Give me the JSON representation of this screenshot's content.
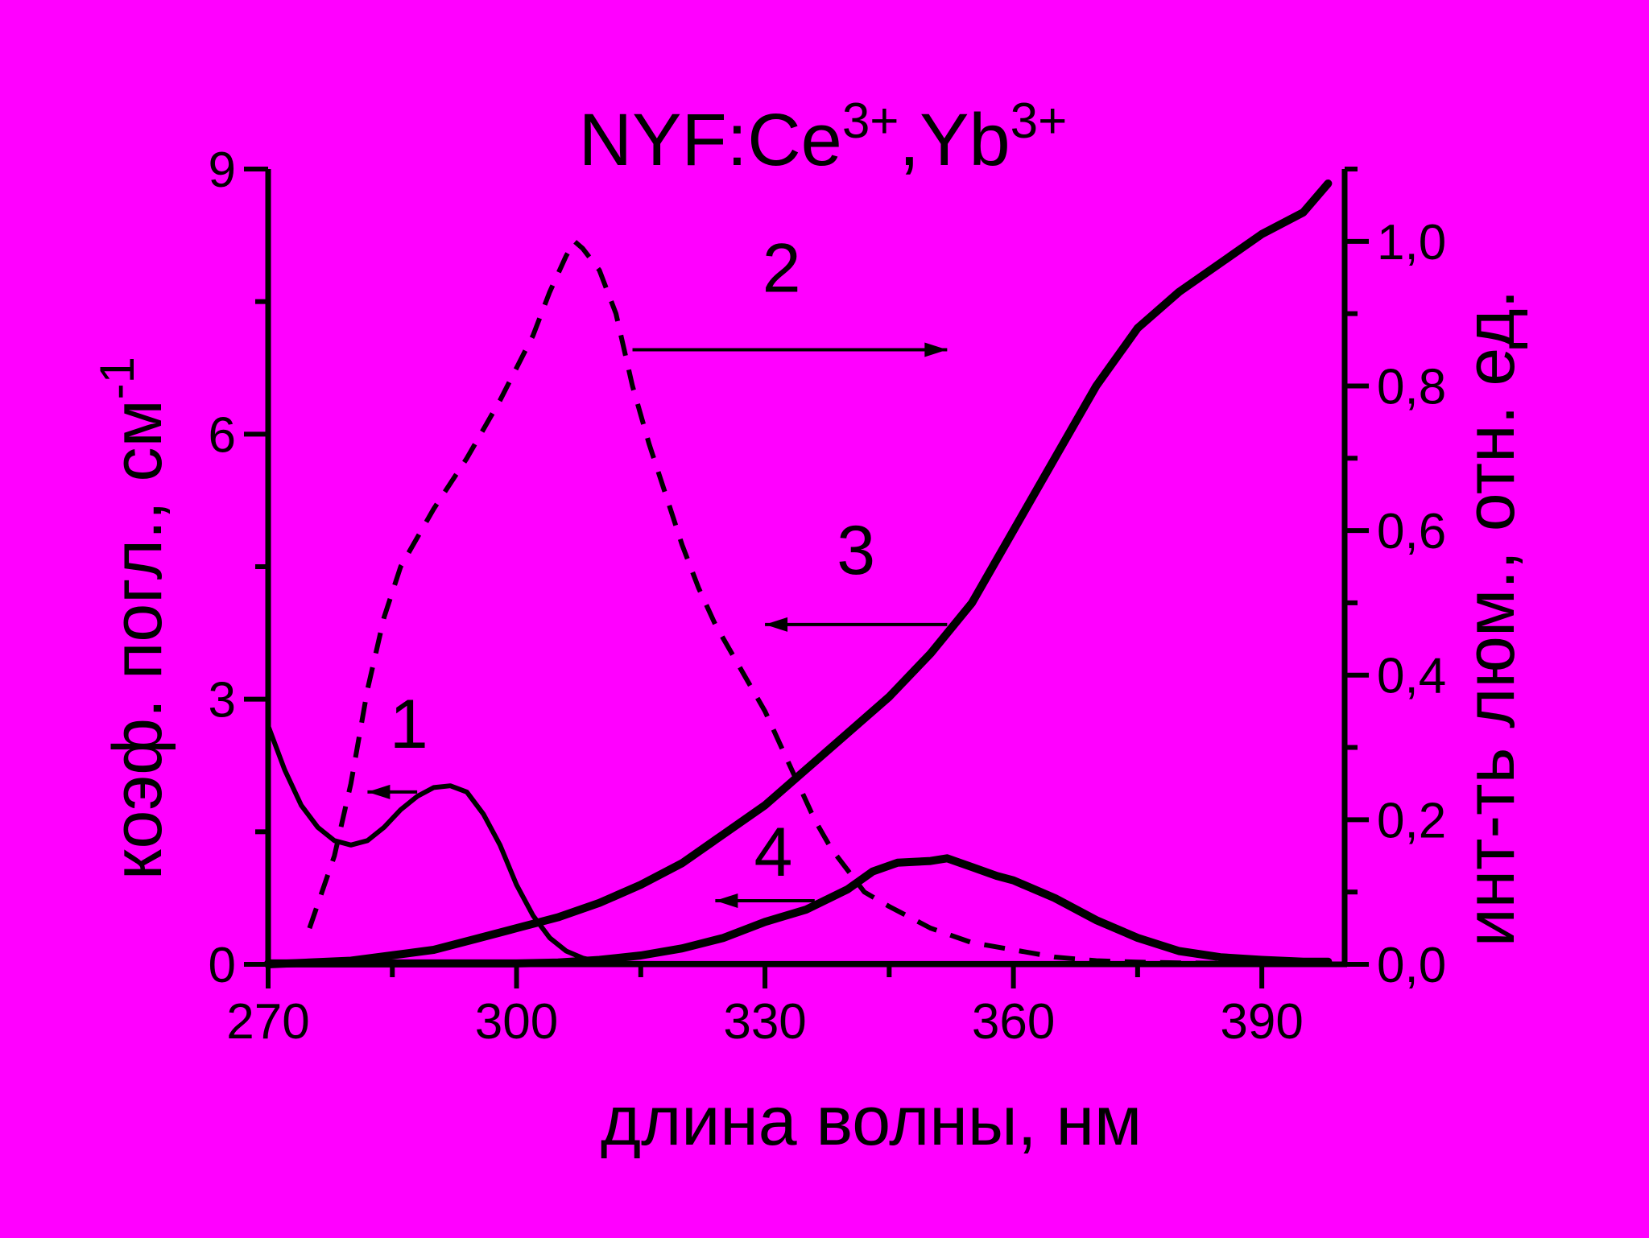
{
  "chart_data": {
    "type": "line",
    "title_main": "NYF:Ce",
    "title_sup1": "3+",
    "title_mid": ",Yb",
    "title_sup2": "3+",
    "xlabel": "длина волны, нм",
    "ylabel_left_main": "коэф. погл., см",
    "ylabel_left_sup": "-1",
    "ylabel_right": "инт-ть люм., отн. ед.",
    "xlim": [
      270,
      400
    ],
    "ylim_left": [
      0,
      9
    ],
    "ylim_right": [
      0,
      1.1
    ],
    "x_ticks": [
      270,
      300,
      330,
      360,
      390
    ],
    "x_tick_labels": [
      "270",
      "300",
      "330",
      "360",
      "390"
    ],
    "y_left_ticks": [
      0,
      3,
      6,
      9
    ],
    "y_left_tick_labels": [
      "0",
      "3",
      "6",
      "9"
    ],
    "y_right_ticks": [
      0,
      0.2,
      0.4,
      0.6,
      0.8,
      1.0
    ],
    "y_right_tick_labels": [
      "0,0",
      "0,2",
      "0,4",
      "0,6",
      "0,8",
      "1,0"
    ],
    "background": "#ff00ff",
    "line_color": "#000000",
    "series": [
      {
        "label": "1",
        "axis": "left",
        "style": "solid",
        "x": [
          270,
          272,
          274,
          276,
          278,
          280,
          282,
          284,
          286,
          288,
          290,
          292,
          294,
          296,
          298,
          300,
          302,
          304,
          306,
          308,
          310,
          312,
          314,
          316,
          318,
          320,
          325,
          330,
          335,
          340,
          345,
          350,
          355,
          360,
          365,
          370,
          380,
          390,
          398
        ],
        "y": [
          2.7,
          2.2,
          1.8,
          1.55,
          1.4,
          1.35,
          1.4,
          1.55,
          1.75,
          1.9,
          2.0,
          2.02,
          1.95,
          1.7,
          1.35,
          0.9,
          0.55,
          0.3,
          0.15,
          0.07,
          0.03,
          0.01,
          0.01,
          0.01,
          0.01,
          0.01,
          0.01,
          0.01,
          0.01,
          0.01,
          0.01,
          0.01,
          0.01,
          0.01,
          0.01,
          0.01,
          0.01,
          0.01,
          0.01
        ]
      },
      {
        "label": "2",
        "axis": "right",
        "style": "dashed",
        "x": [
          275,
          278,
          280,
          282,
          284,
          286,
          290,
          294,
          298,
          302,
          304,
          306,
          307,
          308,
          310,
          312,
          314,
          316,
          318,
          320,
          322,
          324,
          326,
          328,
          330,
          332,
          334,
          336,
          338,
          340,
          342,
          345,
          350,
          355,
          360,
          365,
          370,
          375,
          380,
          390,
          398
        ],
        "y": [
          0.05,
          0.15,
          0.25,
          0.38,
          0.48,
          0.55,
          0.63,
          0.7,
          0.78,
          0.87,
          0.93,
          0.98,
          1.0,
          0.99,
          0.96,
          0.9,
          0.8,
          0.72,
          0.65,
          0.58,
          0.52,
          0.47,
          0.43,
          0.39,
          0.35,
          0.3,
          0.25,
          0.2,
          0.16,
          0.13,
          0.1,
          0.08,
          0.05,
          0.03,
          0.02,
          0.01,
          0.005,
          0.003,
          0.002,
          0.001,
          0.0
        ]
      },
      {
        "label": "3",
        "axis": "right",
        "style": "solid-thick",
        "x": [
          270,
          280,
          290,
          295,
          300,
          305,
          310,
          315,
          320,
          325,
          330,
          335,
          340,
          345,
          350,
          355,
          360,
          365,
          370,
          375,
          380,
          385,
          390,
          395,
          398
        ],
        "y": [
          0.0,
          0.005,
          0.02,
          0.035,
          0.05,
          0.065,
          0.085,
          0.11,
          0.14,
          0.18,
          0.22,
          0.27,
          0.32,
          0.37,
          0.43,
          0.5,
          0.6,
          0.7,
          0.8,
          0.88,
          0.93,
          0.97,
          1.01,
          1.04,
          1.08
        ]
      },
      {
        "label": "4",
        "axis": "left",
        "style": "solid-thick",
        "x": [
          270,
          280,
          290,
          300,
          305,
          310,
          315,
          320,
          325,
          330,
          335,
          340,
          343,
          346,
          350,
          352,
          355,
          358,
          360,
          365,
          370,
          375,
          380,
          385,
          390,
          395,
          398
        ],
        "y": [
          0.01,
          0.01,
          0.01,
          0.01,
          0.02,
          0.05,
          0.1,
          0.18,
          0.3,
          0.48,
          0.62,
          0.85,
          1.05,
          1.15,
          1.17,
          1.2,
          1.1,
          1.0,
          0.95,
          0.75,
          0.5,
          0.3,
          0.15,
          0.08,
          0.05,
          0.03,
          0.03
        ]
      }
    ],
    "annotations": [
      {
        "label": "1",
        "arrow": "left",
        "from_x": 288,
        "to_x": 282,
        "y_left": 1.95,
        "text_x": 287,
        "text_y_left": 2.45
      },
      {
        "label": "2",
        "arrow": "right",
        "from_x": 314,
        "to_x": 352,
        "y_right": 0.85,
        "text_x": 332,
        "text_y_right": 0.93
      },
      {
        "label": "3",
        "arrow": "left",
        "from_x": 352,
        "to_x": 330,
        "y_right": 0.47,
        "text_x": 341,
        "text_y_right": 0.54
      },
      {
        "label": "4",
        "arrow": "left",
        "from_x": 336,
        "to_x": 324,
        "y_left": 0.72,
        "text_x": 331,
        "text_y_left": 1.0
      }
    ]
  }
}
